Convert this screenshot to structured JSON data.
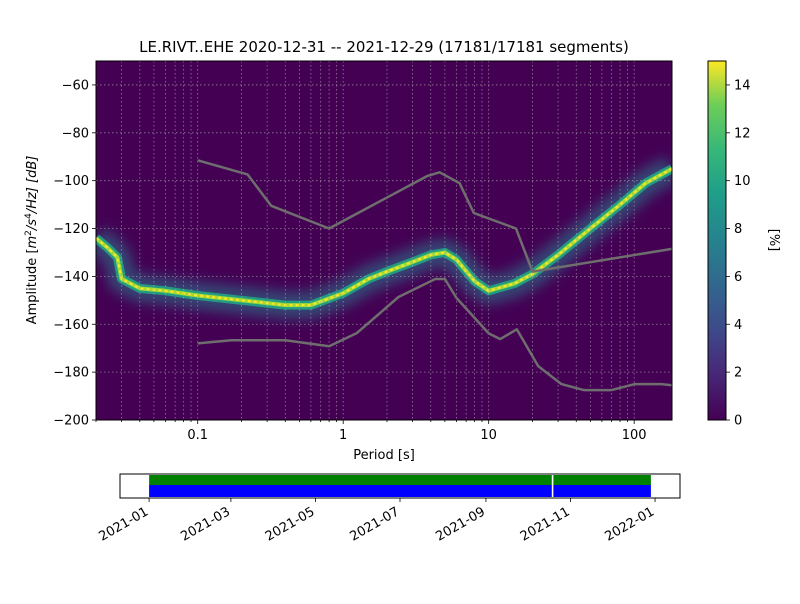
{
  "chart_data": [
    {
      "type": "heatmap",
      "title": "LE.RIVT..EHE   2020-12-31 -- 2021-12-29  (17181/17181 segments)",
      "xlabel": "Period [s]",
      "ylabel_main": "Amplitude [",
      "ylabel_sup1": "2",
      "ylabel_mid": "/s",
      "ylabel_sup2": "4",
      "ylabel_tail": "/Hz] [dB]",
      "x_scale": "log",
      "xlim": [
        0.02,
        182
      ],
      "ylim": [
        -200,
        -50
      ],
      "x_ticks": [
        {
          "value": 0.1,
          "label": "0.1"
        },
        {
          "value": 1,
          "label": "1"
        },
        {
          "value": 10,
          "label": "10"
        },
        {
          "value": 100,
          "label": "100"
        }
      ],
      "y_ticks": [
        {
          "value": -60,
          "label": "−60"
        },
        {
          "value": -80,
          "label": "−80"
        },
        {
          "value": -100,
          "label": "−100"
        },
        {
          "value": -120,
          "label": "−120"
        },
        {
          "value": -140,
          "label": "−140"
        },
        {
          "value": -160,
          "label": "−160"
        },
        {
          "value": -180,
          "label": "−180"
        },
        {
          "value": -200,
          "label": "−200"
        }
      ],
      "grid": true,
      "colorbar": {
        "label": "[%]",
        "range": [
          0,
          15
        ],
        "ticks": [
          {
            "value": 0,
            "label": "0"
          },
          {
            "value": 2,
            "label": "2"
          },
          {
            "value": 4,
            "label": "4"
          },
          {
            "value": 6,
            "label": "6"
          },
          {
            "value": 8,
            "label": "8"
          },
          {
            "value": 10,
            "label": "10"
          },
          {
            "value": 12,
            "label": "12"
          },
          {
            "value": 14,
            "label": "14"
          }
        ]
      },
      "density_ridge": [
        {
          "period": 0.02,
          "db": -124
        },
        {
          "period": 0.024,
          "db": -128
        },
        {
          "period": 0.028,
          "db": -132
        },
        {
          "period": 0.03,
          "db": -141
        },
        {
          "period": 0.04,
          "db": -145
        },
        {
          "period": 0.06,
          "db": -146
        },
        {
          "period": 0.1,
          "db": -148
        },
        {
          "period": 0.2,
          "db": -150
        },
        {
          "period": 0.4,
          "db": -152
        },
        {
          "period": 0.6,
          "db": -152
        },
        {
          "period": 1,
          "db": -147
        },
        {
          "period": 1.5,
          "db": -141
        },
        {
          "period": 2,
          "db": -138
        },
        {
          "period": 3,
          "db": -134
        },
        {
          "period": 4,
          "db": -131
        },
        {
          "period": 5,
          "db": -130
        },
        {
          "period": 6,
          "db": -133
        },
        {
          "period": 8,
          "db": -142
        },
        {
          "period": 10,
          "db": -146
        },
        {
          "period": 15,
          "db": -143
        },
        {
          "period": 20,
          "db": -139
        },
        {
          "period": 30,
          "db": -131
        },
        {
          "period": 50,
          "db": -120
        },
        {
          "period": 80,
          "db": -110
        },
        {
          "period": 120,
          "db": -101
        },
        {
          "period": 182,
          "db": -95
        }
      ],
      "noise_model_high": [
        {
          "period": 0.1,
          "db": -91.5
        },
        {
          "period": 0.22,
          "db": -97.4
        },
        {
          "period": 0.32,
          "db": -110.5
        },
        {
          "period": 0.8,
          "db": -120
        },
        {
          "period": 3.8,
          "db": -98
        },
        {
          "period": 4.6,
          "db": -96.5
        },
        {
          "period": 6.3,
          "db": -101
        },
        {
          "period": 7.9,
          "db": -113.5
        },
        {
          "period": 15.4,
          "db": -120
        },
        {
          "period": 20,
          "db": -138
        },
        {
          "period": 182,
          "db": -128.5
        }
      ],
      "noise_model_low": [
        {
          "period": 0.1,
          "db": -168
        },
        {
          "period": 0.17,
          "db": -166.7
        },
        {
          "period": 0.4,
          "db": -166.7
        },
        {
          "period": 0.8,
          "db": -169.2
        },
        {
          "period": 1.24,
          "db": -163.7
        },
        {
          "period": 2.4,
          "db": -148.6
        },
        {
          "period": 4.3,
          "db": -141.1
        },
        {
          "period": 5,
          "db": -141.1
        },
        {
          "period": 6,
          "db": -149
        },
        {
          "period": 10,
          "db": -163.8
        },
        {
          "period": 12,
          "db": -166.2
        },
        {
          "period": 15.6,
          "db": -162.1
        },
        {
          "period": 21.9,
          "db": -177.5
        },
        {
          "period": 31.6,
          "db": -185
        },
        {
          "period": 45,
          "db": -187.5
        },
        {
          "period": 70,
          "db": -187.5
        },
        {
          "period": 101,
          "db": -185
        },
        {
          "period": 154,
          "db": -185
        },
        {
          "period": 182,
          "db": -185.5
        }
      ]
    },
    {
      "type": "timeline",
      "data_start": "2021-01-01",
      "data_end": "2021-12-29",
      "axis_start": "2020-12-11",
      "axis_end": "2022-01-19",
      "gap": "2021-10-19",
      "tick_labels": [
        {
          "date": "2021-01-01",
          "label": "2021-01"
        },
        {
          "date": "2021-03-01",
          "label": "2021-03"
        },
        {
          "date": "2021-05-01",
          "label": "2021-05"
        },
        {
          "date": "2021-07-01",
          "label": "2021-07"
        },
        {
          "date": "2021-09-01",
          "label": "2021-09"
        },
        {
          "date": "2021-11-01",
          "label": "2021-11"
        },
        {
          "date": "2022-01-01",
          "label": "2022-01"
        }
      ],
      "bar_colors": {
        "upper": "#008000",
        "lower": "#0000ff"
      }
    }
  ],
  "colors": {
    "curve": "#6e6e6e",
    "background": "#440154"
  }
}
